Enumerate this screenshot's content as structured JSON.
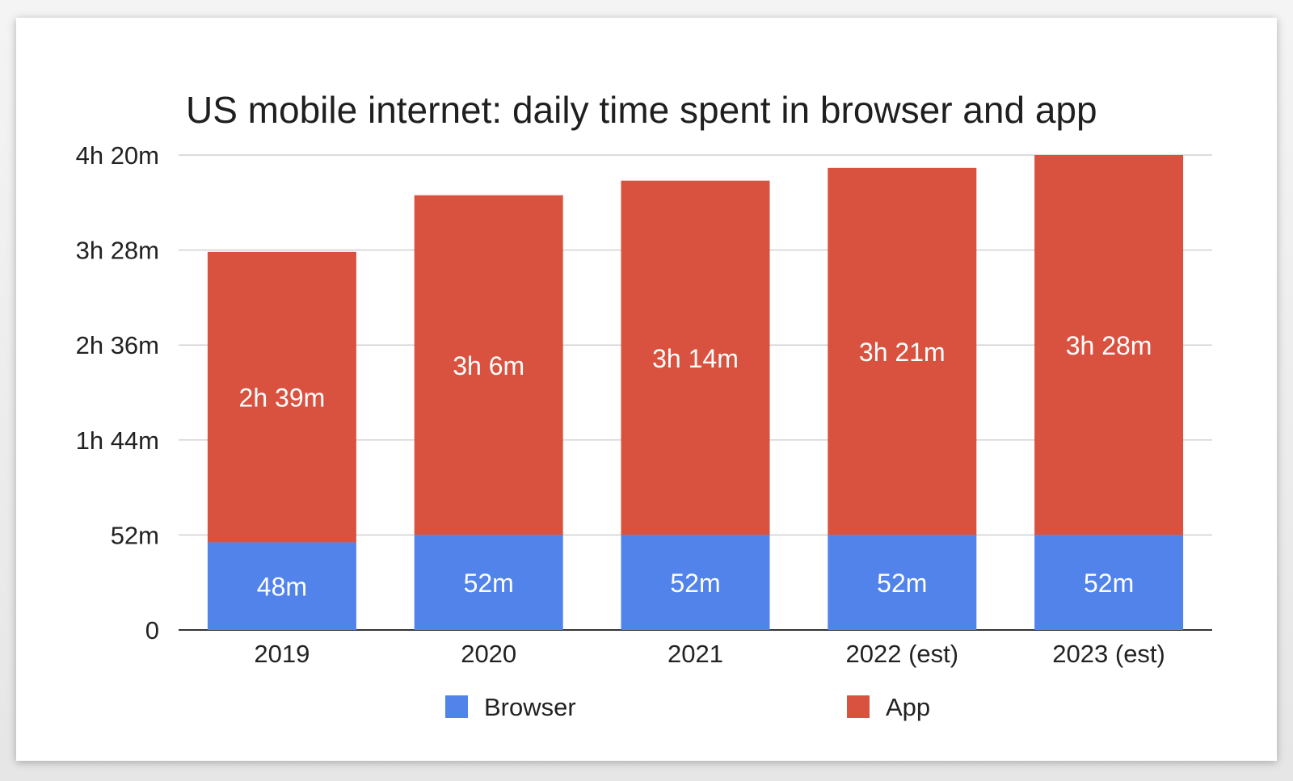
{
  "chart_data": {
    "type": "bar",
    "stacked": true,
    "title": "US mobile internet: daily time spent in browser and app",
    "xlabel": "",
    "ylabel": "",
    "categories": [
      "2019",
      "2020",
      "2021",
      "2022 (est)",
      "2023 (est)"
    ],
    "series": [
      {
        "name": "Browser",
        "color": "#5283ea",
        "values": [
          48,
          52,
          52,
          52,
          52
        ],
        "labels": [
          "48m",
          "52m",
          "52m",
          "52m",
          "52m"
        ]
      },
      {
        "name": "App",
        "color": "#d95240",
        "values": [
          159,
          186,
          194,
          201,
          208
        ],
        "labels": [
          "2h 39m",
          "3h 6m",
          "3h 14m",
          "3h 21m",
          "3h 28m"
        ]
      }
    ],
    "ylim": [
      0,
      260
    ],
    "yticks": [
      {
        "value": 0,
        "label": "0"
      },
      {
        "value": 52,
        "label": "52m"
      },
      {
        "value": 104,
        "label": "1h 44m"
      },
      {
        "value": 156,
        "label": "2h 36m"
      },
      {
        "value": 208,
        "label": "3h 28m"
      },
      {
        "value": 260,
        "label": "4h 20m"
      }
    ],
    "grid": true,
    "legend_position": "bottom-center"
  }
}
